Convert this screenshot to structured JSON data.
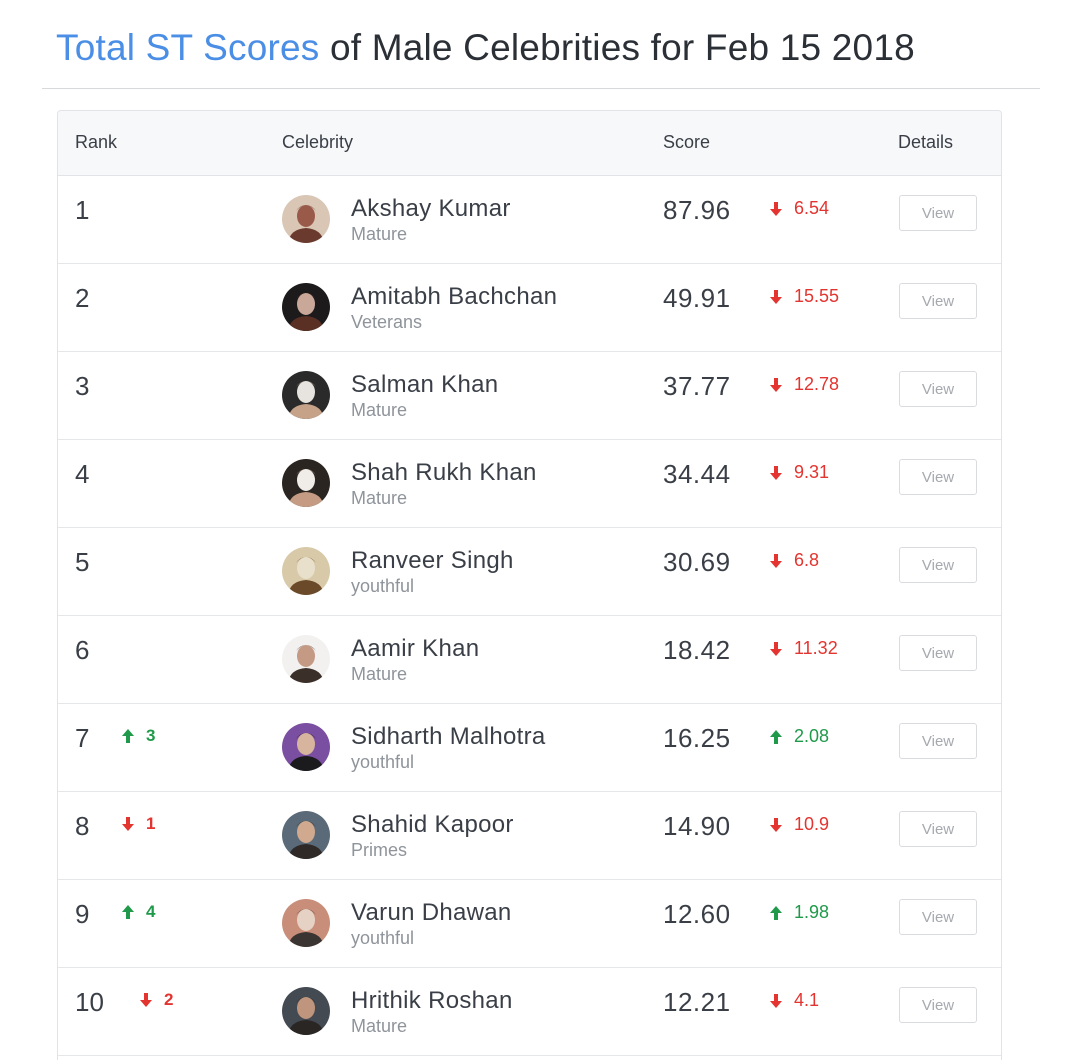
{
  "heading": {
    "highlight": "Total ST Scores",
    "rest": "of Male Celebrities for Feb 15 2018"
  },
  "columns": {
    "rank": "Rank",
    "celebrity": "Celebrity",
    "score": "Score",
    "details": "Details"
  },
  "colors": {
    "accent": "#4a8ee6",
    "up": "#1f9a4a",
    "down": "#e3342f"
  },
  "rows": [
    {
      "rank": "1",
      "rank_change": null,
      "name": "Akshay Kumar",
      "category": "Mature",
      "score": "87.96",
      "delta": {
        "dir": "down",
        "value": "6.54"
      },
      "button": "View",
      "avatar": "avatar-1"
    },
    {
      "rank": "2",
      "rank_change": null,
      "name": "Amitabh Bachchan",
      "category": "Veterans",
      "score": "49.91",
      "delta": {
        "dir": "down",
        "value": "15.55"
      },
      "button": "View",
      "avatar": "avatar-2"
    },
    {
      "rank": "3",
      "rank_change": null,
      "name": "Salman Khan",
      "category": "Mature",
      "score": "37.77",
      "delta": {
        "dir": "down",
        "value": "12.78"
      },
      "button": "View",
      "avatar": "avatar-3"
    },
    {
      "rank": "4",
      "rank_change": null,
      "name": "Shah Rukh Khan",
      "category": "Mature",
      "score": "34.44",
      "delta": {
        "dir": "down",
        "value": "9.31"
      },
      "button": "View",
      "avatar": "avatar-4"
    },
    {
      "rank": "5",
      "rank_change": null,
      "name": "Ranveer Singh",
      "category": "youthful",
      "score": "30.69",
      "delta": {
        "dir": "down",
        "value": "6.8"
      },
      "button": "View",
      "avatar": "avatar-5"
    },
    {
      "rank": "6",
      "rank_change": null,
      "name": "Aamir Khan",
      "category": "Mature",
      "score": "18.42",
      "delta": {
        "dir": "down",
        "value": "11.32"
      },
      "button": "View",
      "avatar": "avatar-6"
    },
    {
      "rank": "7",
      "rank_change": {
        "dir": "up",
        "value": "3"
      },
      "name": "Sidharth Malhotra",
      "category": "youthful",
      "score": "16.25",
      "delta": {
        "dir": "up",
        "value": "2.08"
      },
      "button": "View",
      "avatar": "avatar-7"
    },
    {
      "rank": "8",
      "rank_change": {
        "dir": "down",
        "value": "1"
      },
      "name": "Shahid Kapoor",
      "category": "Primes",
      "score": "14.90",
      "delta": {
        "dir": "down",
        "value": "10.9"
      },
      "button": "View",
      "avatar": "avatar-8"
    },
    {
      "rank": "9",
      "rank_change": {
        "dir": "up",
        "value": "4"
      },
      "name": "Varun Dhawan",
      "category": "youthful",
      "score": "12.60",
      "delta": {
        "dir": "up",
        "value": "1.98"
      },
      "button": "View",
      "avatar": "avatar-9"
    },
    {
      "rank": "10",
      "rank_change": {
        "dir": "down",
        "value": "2"
      },
      "name": "Hrithik Roshan",
      "category": "Mature",
      "score": "12.21",
      "delta": {
        "dir": "down",
        "value": "4.1"
      },
      "button": "View",
      "avatar": "avatar-10"
    }
  ]
}
